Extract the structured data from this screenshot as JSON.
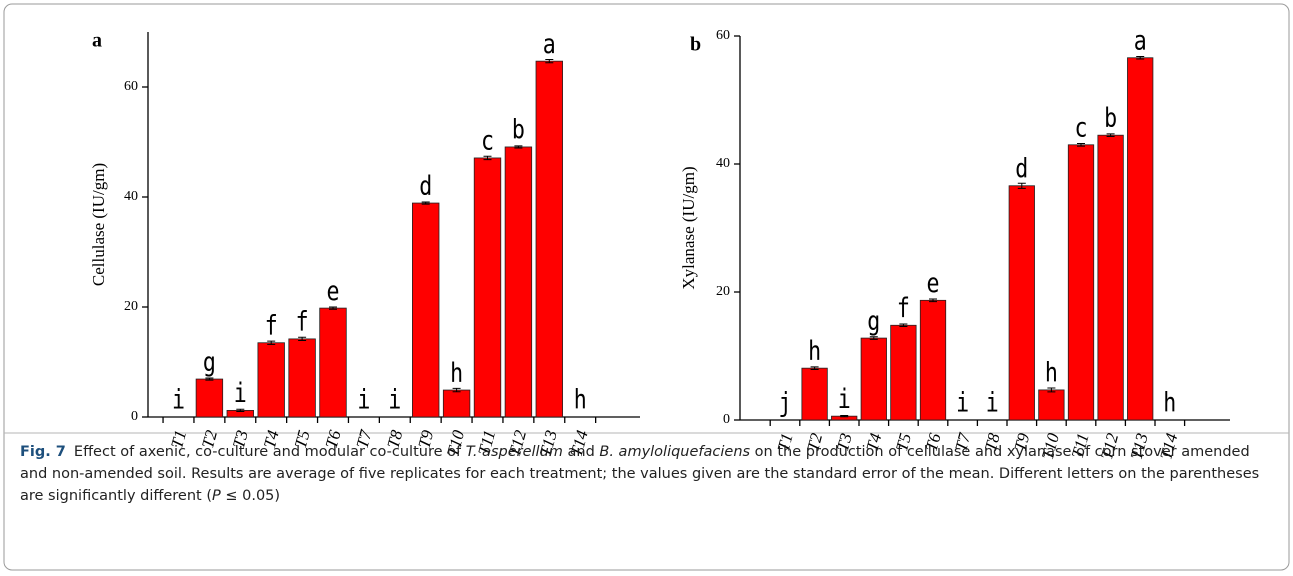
{
  "chart_data": [
    {
      "type": "bar",
      "panel_label": "a",
      "y_label": "Cellulase (IU/gm)",
      "color": "#ff0000",
      "categories": [
        "T1",
        "T2",
        "T3",
        "T4",
        "T5",
        "T6",
        "T7",
        "T8",
        "T9",
        "T10",
        "T11",
        "T12",
        "T13",
        "T14"
      ],
      "values": [
        0,
        6.9,
        1.2,
        13.5,
        14.2,
        19.8,
        0,
        0,
        38.9,
        4.9,
        47.1,
        49.1,
        64.7,
        0
      ],
      "errors": [
        0,
        0.2,
        0.2,
        0.3,
        0.3,
        0.2,
        0,
        0,
        0.2,
        0.3,
        0.3,
        0.2,
        0.3,
        0
      ],
      "letters": [
        "i",
        "g",
        "i",
        "f",
        "f",
        "e",
        "i",
        "i",
        "d",
        "h",
        "c",
        "b",
        "a",
        "h"
      ],
      "ylim": [
        0,
        70
      ],
      "yticks": [
        0,
        20,
        40,
        60
      ]
    },
    {
      "type": "bar",
      "panel_label": "b",
      "y_label": "Xylanase (IU/gm)",
      "color": "#ff0000",
      "categories": [
        "T1",
        "T2",
        "T3",
        "T4",
        "T5",
        "T6",
        "T7",
        "T8",
        "T9",
        "T10",
        "T11",
        "T12",
        "T13",
        "T14"
      ],
      "values": [
        0,
        8.1,
        0.6,
        12.8,
        14.8,
        18.7,
        0,
        0,
        36.6,
        4.7,
        43.0,
        44.5,
        56.6,
        0
      ],
      "errors": [
        0,
        0.2,
        0.1,
        0.2,
        0.2,
        0.2,
        0,
        0,
        0.4,
        0.3,
        0.2,
        0.2,
        0.2,
        0
      ],
      "letters": [
        "j",
        "h",
        "i",
        "g",
        "f",
        "e",
        "i",
        "i",
        "d",
        "h",
        "c",
        "b",
        "a",
        "h"
      ],
      "ylim": [
        0,
        60
      ],
      "yticks": [
        0,
        20,
        40,
        60
      ]
    }
  ],
  "caption": {
    "label": "Fig. 7",
    "parts": [
      "Effect of axenic, co-culture and modular co-culture of ",
      "T. asperellum",
      " and ",
      "B. amyloliquefaciens",
      " on the production of cellulase and xylanase of corn stover amended and non-amended soil. Results are average of five replicates for each treatment; the values given are the standard error of the mean. Different letters on the parentheses are significantly different (",
      "P",
      " ≤ 0.05)"
    ]
  }
}
